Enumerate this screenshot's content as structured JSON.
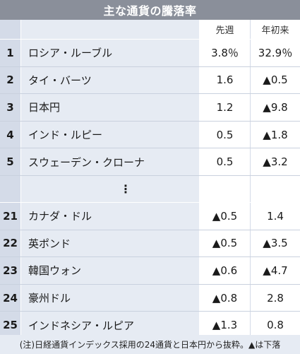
{
  "title": "主な通貨の騰落率",
  "columns": {
    "week": "先週",
    "ytd": "年初来"
  },
  "rows_top": [
    {
      "rank": "1",
      "name": "ロシア・ルーブル",
      "week": "3.8％",
      "ytd": "32.9％"
    },
    {
      "rank": "2",
      "name": "タイ・バーツ",
      "week": "1.6",
      "ytd": "▲0.5"
    },
    {
      "rank": "3",
      "name": "日本円",
      "week": "1.2",
      "ytd": "▲9.8"
    },
    {
      "rank": "4",
      "name": "インド・ルピー",
      "week": "0.5",
      "ytd": "▲1.8"
    },
    {
      "rank": "5",
      "name": "スウェーデン・クローナ",
      "week": "0.5",
      "ytd": "▲3.2"
    }
  ],
  "ellipsis": "⋮",
  "rows_bottom": [
    {
      "rank": "21",
      "name": "カナダ・ドル",
      "week": "▲0.5",
      "ytd": "1.4"
    },
    {
      "rank": "22",
      "name": "英ポンド",
      "week": "▲0.5",
      "ytd": "▲3.5"
    },
    {
      "rank": "23",
      "name": "韓国ウォン",
      "week": "▲0.6",
      "ytd": "▲4.7"
    },
    {
      "rank": "24",
      "name": "豪州ドル",
      "week": "▲0.8",
      "ytd": "2.8"
    },
    {
      "rank": "25",
      "name": "インドネシア・ルピア",
      "week": "▲1.3",
      "ytd": "0.8"
    }
  ],
  "note": "(注)日経通貨インデックス採用の24通貨と日本円から抜粋。▲は下落"
}
